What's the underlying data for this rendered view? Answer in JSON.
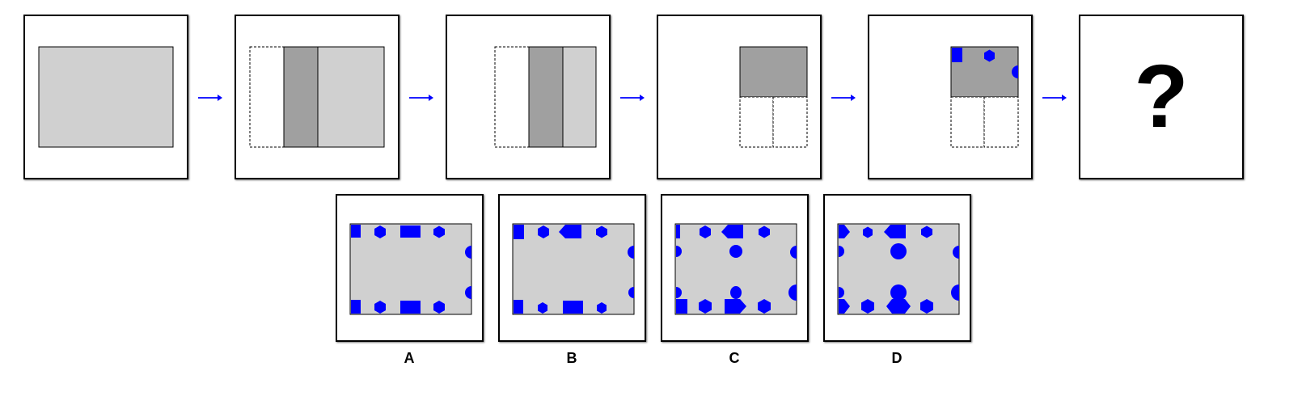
{
  "colors": {
    "fold_fill": "#d0d0d0",
    "fold_dark": "#a0a0a0",
    "hole_blue": "#0000ff",
    "arrow_blue": "#0000ff",
    "outline": "#000000"
  },
  "sequence": {
    "answer_placeholder": "?"
  },
  "options": [
    {
      "label": "A"
    },
    {
      "label": "B"
    },
    {
      "label": "C"
    },
    {
      "label": "D"
    }
  ]
}
